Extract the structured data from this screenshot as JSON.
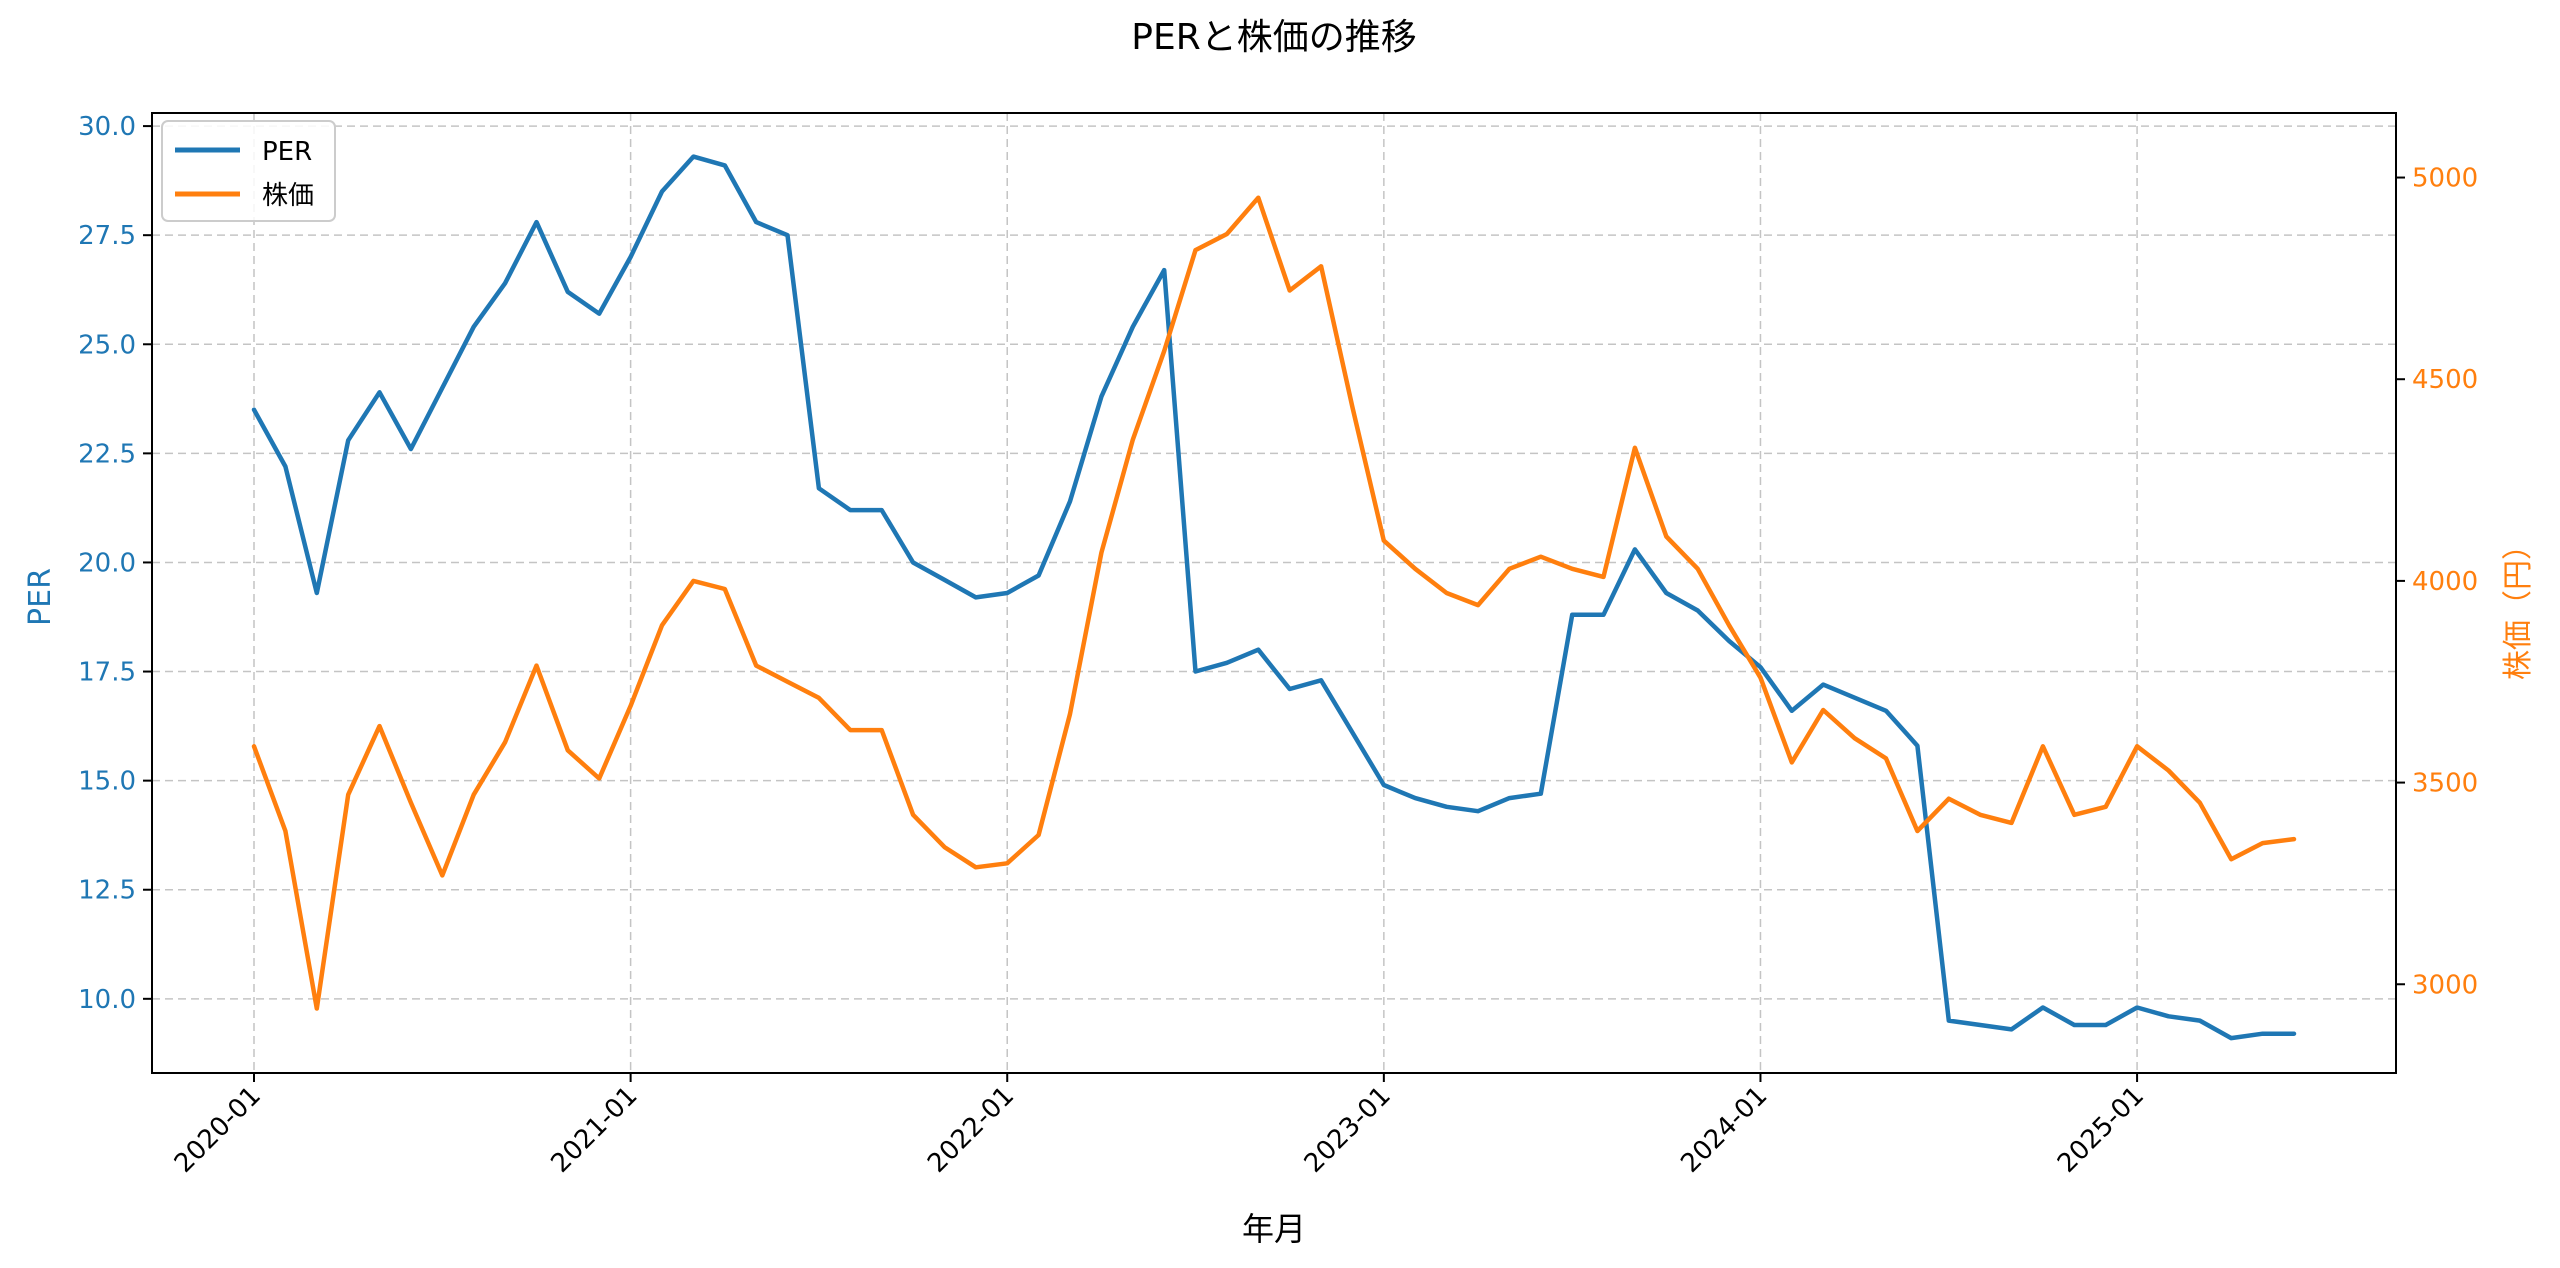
{
  "chart_data": {
    "type": "line",
    "title": "PERと株価の推移",
    "xlabel": "年月",
    "ylabel_left": "PER",
    "ylabel_right": "株価（円）",
    "x_ticks": [
      "2020-01",
      "2021-01",
      "2022-01",
      "2023-01",
      "2024-01",
      "2025-01"
    ],
    "x_start": "2020-01",
    "x_end": "2025-06",
    "y_left_ticks": [
      "10.0",
      "12.5",
      "15.0",
      "17.5",
      "20.0",
      "22.5",
      "25.0",
      "27.5",
      "30.0"
    ],
    "y_left_range": [
      8.3,
      30.3
    ],
    "y_right_ticks": [
      "3000",
      "3500",
      "4000",
      "4500",
      "5000"
    ],
    "y_right_range": [
      2780,
      5160
    ],
    "grid": true,
    "legend_position": "top-left",
    "colors": {
      "per": "#1f77b4",
      "price": "#ff7f0e",
      "grid": "#b0b0b0",
      "axis": "#000000"
    },
    "series": [
      {
        "name": "PER",
        "axis": "left",
        "values": [
          23.5,
          22.2,
          19.3,
          22.8,
          23.9,
          22.6,
          24.0,
          25.4,
          26.4,
          27.8,
          26.2,
          25.7,
          27.0,
          28.5,
          29.3,
          29.1,
          27.8,
          27.5,
          21.7,
          21.2,
          21.2,
          20.0,
          19.6,
          19.2,
          19.3,
          19.7,
          21.4,
          23.8,
          25.4,
          26.7,
          17.5,
          17.7,
          18.0,
          17.1,
          17.3,
          16.1,
          14.9,
          14.6,
          14.4,
          14.3,
          14.6,
          14.7,
          18.8,
          18.8,
          20.3,
          19.3,
          18.9,
          18.2,
          17.6,
          16.6,
          17.2,
          16.9,
          16.6,
          15.8,
          9.5,
          9.4,
          9.3,
          9.8,
          9.4,
          9.4,
          9.8,
          9.6,
          9.5,
          9.1,
          9.2,
          9.2
        ]
      },
      {
        "name": "株価",
        "axis": "right",
        "values": [
          3590,
          3380,
          2940,
          3470,
          3640,
          3450,
          3270,
          3470,
          3600,
          3790,
          3580,
          3510,
          3690,
          3890,
          4000,
          3980,
          3790,
          3750,
          3710,
          3630,
          3630,
          3420,
          3340,
          3290,
          3300,
          3370,
          3670,
          4070,
          4350,
          4570,
          4820,
          4860,
          4950,
          4720,
          4780,
          4430,
          4100,
          4030,
          3970,
          3940,
          4030,
          4060,
          4030,
          4010,
          4330,
          4110,
          4030,
          3890,
          3760,
          3550,
          3680,
          3610,
          3560,
          3380,
          3460,
          3420,
          3400,
          3590,
          3420,
          3440,
          3590,
          3530,
          3450,
          3310,
          3350,
          3360
        ]
      }
    ]
  }
}
